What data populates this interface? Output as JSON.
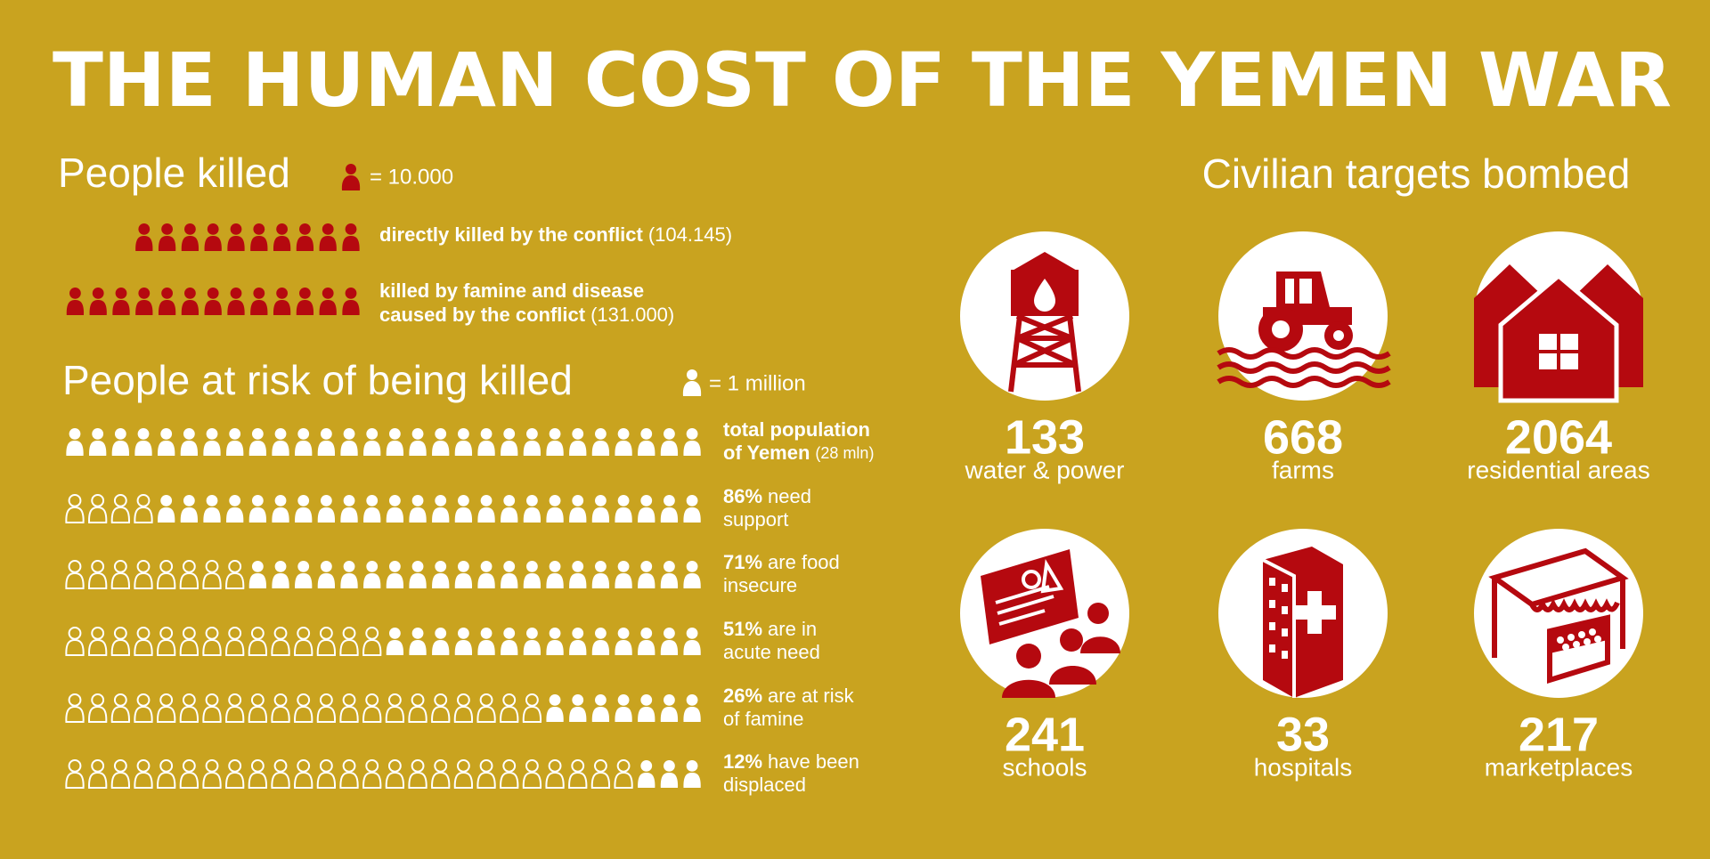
{
  "title": "THE HUMAN COST OF THE YEMEN WAR",
  "killed": {
    "heading": "People killed",
    "legend": "= 10.000",
    "color": "#b5090f",
    "rows": [
      {
        "icons": 10,
        "lines": [
          [
            {
              "text": "directly killed by the conflict",
              "bold": true
            },
            {
              "text": "(104.145)"
            }
          ]
        ]
      },
      {
        "icons": 13,
        "lines": [
          [
            {
              "text": "killed by famine and disease",
              "bold": true
            }
          ],
          [
            {
              "text": "caused by the conflict",
              "bold": true
            },
            {
              "text": "(131.000)"
            }
          ]
        ]
      }
    ]
  },
  "risk": {
    "heading": "People at risk of being killed",
    "legend": "= 1 million",
    "color": "#ffffff",
    "icons_per_row": 28,
    "rows": [
      {
        "filled": 28,
        "lines": [
          [
            {
              "text": "total population",
              "bold": true
            }
          ],
          [
            {
              "text": "of Yemen",
              "bold": true
            },
            {
              "text": "(28 mln)",
              "small": true
            }
          ]
        ]
      },
      {
        "filled": 24,
        "lines": [
          [
            {
              "text": "86%",
              "bold": true
            },
            {
              "text": "need"
            }
          ],
          [
            {
              "text": "support"
            }
          ]
        ]
      },
      {
        "filled": 20,
        "lines": [
          [
            {
              "text": "71%",
              "bold": true
            },
            {
              "text": "are food"
            }
          ],
          [
            {
              "text": "insecure"
            }
          ]
        ]
      },
      {
        "filled": 14,
        "lines": [
          [
            {
              "text": "51%",
              "bold": true
            },
            {
              "text": "are in"
            }
          ],
          [
            {
              "text": "acute need"
            }
          ]
        ]
      },
      {
        "filled": 7,
        "lines": [
          [
            {
              "text": "26%",
              "bold": true
            },
            {
              "text": "are at risk"
            }
          ],
          [
            {
              "text": "of famine"
            }
          ]
        ]
      },
      {
        "filled": 3,
        "lines": [
          [
            {
              "text": "12%",
              "bold": true
            },
            {
              "text": "have been"
            }
          ],
          [
            {
              "text": "displaced"
            }
          ]
        ]
      }
    ]
  },
  "targets": {
    "heading": "Civilian targets bombed",
    "items": [
      {
        "value": "133",
        "label": "water & power"
      },
      {
        "value": "668",
        "label": "farms"
      },
      {
        "value": "2064",
        "label": "residential areas"
      },
      {
        "value": "241",
        "label": "schools"
      },
      {
        "value": "33",
        "label": "hospitals"
      },
      {
        "value": "217",
        "label": "marketplaces"
      }
    ]
  }
}
